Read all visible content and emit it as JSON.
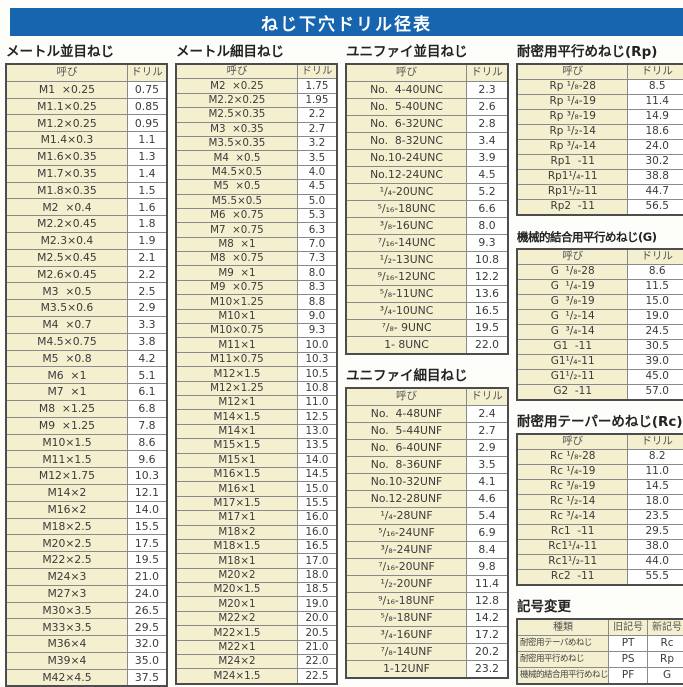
{
  "title": "ねじ下穴ドリル径表",
  "col_headers": {
    "name": "呼び",
    "drill": "ドリル"
  },
  "sections": {
    "metric_coarse": {
      "title": "メートル並目ねじ",
      "rows": [
        [
          "M1  ×0.25",
          "0.75"
        ],
        [
          "M1.1×0.25",
          "0.85"
        ],
        [
          "M1.2×0.25",
          "0.95"
        ],
        [
          "M1.4×0.3",
          "1.1"
        ],
        [
          "M1.6×0.35",
          "1.3"
        ],
        [
          "M1.7×0.35",
          "1.4"
        ],
        [
          "M1.8×0.35",
          "1.5"
        ],
        [
          "M2  ×0.4",
          "1.6"
        ],
        [
          "M2.2×0.45",
          "1.8"
        ],
        [
          "M2.3×0.4",
          "1.9"
        ],
        [
          "M2.5×0.45",
          "2.1"
        ],
        [
          "M2.6×0.45",
          "2.2"
        ],
        [
          "M3  ×0.5",
          "2.5"
        ],
        [
          "M3.5×0.6",
          "2.9"
        ],
        [
          "M4  ×0.7",
          "3.3"
        ],
        [
          "M4.5×0.75",
          "3.8"
        ],
        [
          "M5  ×0.8",
          "4.2"
        ],
        [
          "M6  ×1",
          "5.1"
        ],
        [
          "M7  ×1",
          "6.1"
        ],
        [
          "M8  ×1.25",
          "6.8"
        ],
        [
          "M9  ×1.25",
          "7.8"
        ],
        [
          "M10×1.5",
          "8.6"
        ],
        [
          "M11×1.5",
          "9.6"
        ],
        [
          "M12×1.75",
          "10.3"
        ],
        [
          "M14×2",
          "12.1"
        ],
        [
          "M16×2",
          "14.0"
        ],
        [
          "M18×2.5",
          "15.5"
        ],
        [
          "M20×2.5",
          "17.5"
        ],
        [
          "M22×2.5",
          "19.5"
        ],
        [
          "M24×3",
          "21.0"
        ],
        [
          "M27×3",
          "24.0"
        ],
        [
          "M30×3.5",
          "26.5"
        ],
        [
          "M33×3.5",
          "29.5"
        ],
        [
          "M36×4",
          "32.0"
        ],
        [
          "M39×4",
          "35.0"
        ],
        [
          "M42×4.5",
          "37.5"
        ]
      ]
    },
    "metric_fine": {
      "title": "メートル細目ねじ",
      "rows": [
        [
          "M2  ×0.25",
          "1.75"
        ],
        [
          "M2.2×0.25",
          "1.95"
        ],
        [
          "M2.5×0.35",
          "2.2"
        ],
        [
          "M3  ×0.35",
          "2.7"
        ],
        [
          "M3.5×0.35",
          "3.2"
        ],
        [
          "M4  ×0.5",
          "3.5"
        ],
        [
          "M4.5×0.5",
          "4.0"
        ],
        [
          "M5  ×0.5",
          "4.5"
        ],
        [
          "M5.5×0.5",
          "5.0"
        ],
        [
          "M6  ×0.75",
          "5.3"
        ],
        [
          "M7  ×0.75",
          "6.3"
        ],
        [
          "M8  ×1",
          "7.0"
        ],
        [
          "M8  ×0.75",
          "7.3"
        ],
        [
          "M9  ×1",
          "8.0"
        ],
        [
          "M9  ×0.75",
          "8.3"
        ],
        [
          "M10×1.25",
          "8.8"
        ],
        [
          "M10×1",
          "9.0"
        ],
        [
          "M10×0.75",
          "9.3"
        ],
        [
          "M11×1",
          "10.0"
        ],
        [
          "M11×0.75",
          "10.3"
        ],
        [
          "M12×1.5",
          "10.5"
        ],
        [
          "M12×1.25",
          "10.8"
        ],
        [
          "M12×1",
          "11.0"
        ],
        [
          "M14×1.5",
          "12.5"
        ],
        [
          "M14×1",
          "13.0"
        ],
        [
          "M15×1.5",
          "13.5"
        ],
        [
          "M15×1",
          "14.0"
        ],
        [
          "M16×1.5",
          "14.5"
        ],
        [
          "M16×1",
          "15.0"
        ],
        [
          "M17×1.5",
          "15.5"
        ],
        [
          "M17×1",
          "16.0"
        ],
        [
          "M18×2",
          "16.0"
        ],
        [
          "M18×1.5",
          "16.5"
        ],
        [
          "M18×1",
          "17.0"
        ],
        [
          "M20×2",
          "18.0"
        ],
        [
          "M20×1.5",
          "18.5"
        ],
        [
          "M20×1",
          "19.0"
        ],
        [
          "M22×2",
          "20.0"
        ],
        [
          "M22×1.5",
          "20.5"
        ],
        [
          "M22×1",
          "21.0"
        ],
        [
          "M24×2",
          "22.0"
        ],
        [
          "M24×1.5",
          "22.5"
        ]
      ]
    },
    "unified_coarse": {
      "title": "ユニファイ並目ねじ",
      "rows": [
        [
          "No.  4-40UNC",
          "2.3"
        ],
        [
          "No.  5-40UNC",
          "2.6"
        ],
        [
          "No.  6-32UNC",
          "2.8"
        ],
        [
          "No.  8-32UNC",
          "3.4"
        ],
        [
          "No.10-24UNC",
          "3.9"
        ],
        [
          "No.12-24UNC",
          "4.5"
        ],
        [
          "¹/₄-20UNC",
          "5.2"
        ],
        [
          "⁵/₁₆-18UNC",
          "6.6"
        ],
        [
          "³/₈-16UNC",
          "8.0"
        ],
        [
          "⁷/₁₆-14UNC",
          "9.3"
        ],
        [
          "¹/₂-13UNC",
          "10.8"
        ],
        [
          "⁹/₁₆-12UNC",
          "12.2"
        ],
        [
          "⁵/₈-11UNC",
          "13.6"
        ],
        [
          "³/₄-10UNC",
          "16.5"
        ],
        [
          "⁷/₈- 9UNC",
          "19.5"
        ],
        [
          "1- 8UNC",
          "22.0"
        ]
      ]
    },
    "unified_fine": {
      "title": "ユニファイ細目ねじ",
      "rows": [
        [
          "No.  4-48UNF",
          "2.4"
        ],
        [
          "No.  5-44UNF",
          "2.7"
        ],
        [
          "No.  6-40UNF",
          "2.9"
        ],
        [
          "No.  8-36UNF",
          "3.5"
        ],
        [
          "No.10-32UNF",
          "4.1"
        ],
        [
          "No.12-28UNF",
          "4.6"
        ],
        [
          "¹/₄-28UNF",
          "5.4"
        ],
        [
          "⁵/₁₆-24UNF",
          "6.9"
        ],
        [
          "³/₈-24UNF",
          "8.4"
        ],
        [
          "⁷/₁₆-20UNF",
          "9.8"
        ],
        [
          "¹/₂-20UNF",
          "11.4"
        ],
        [
          "⁹/₁₆-18UNF",
          "12.8"
        ],
        [
          "⁵/₈-18UNF",
          "14.2"
        ],
        [
          "³/₄-16UNF",
          "17.2"
        ],
        [
          "⁷/₈-14UNF",
          "20.2"
        ],
        [
          "1-12UNF",
          "23.2"
        ]
      ]
    },
    "rp": {
      "title": "耐密用平行めねじ(Rp)",
      "rows": [
        [
          "Rp ¹/₈-28",
          "8.5"
        ],
        [
          "Rp ¹/₄-19",
          "11.4"
        ],
        [
          "Rp ³/₈-19",
          "14.9"
        ],
        [
          "Rp ¹/₂-14",
          "18.6"
        ],
        [
          "Rp ³/₄-14",
          "24.0"
        ],
        [
          "Rp1  -11",
          "30.2"
        ],
        [
          "Rp1¹/₄-11",
          "38.8"
        ],
        [
          "Rp1¹/₂-11",
          "44.7"
        ],
        [
          "Rp2  -11",
          "56.5"
        ]
      ]
    },
    "g": {
      "title": "機械的結合用平行めねじ(G)",
      "rows": [
        [
          "G  ¹/₈-28",
          "8.6"
        ],
        [
          "G  ¹/₄-19",
          "11.5"
        ],
        [
          "G  ³/₈-19",
          "15.0"
        ],
        [
          "G  ¹/₂-14",
          "19.0"
        ],
        [
          "G  ³/₄-14",
          "24.5"
        ],
        [
          "G1  -11",
          "30.5"
        ],
        [
          "G1¹/₄-11",
          "39.0"
        ],
        [
          "G1¹/₂-11",
          "45.0"
        ],
        [
          "G2  -11",
          "57.0"
        ]
      ]
    },
    "rc": {
      "title": "耐密用テーパーめねじ(Rc)",
      "rows": [
        [
          "Rc ¹/₈-28",
          "8.2"
        ],
        [
          "Rc ¹/₄-19",
          "11.0"
        ],
        [
          "Rc ³/₈-19",
          "14.5"
        ],
        [
          "Rc ¹/₂-14",
          "18.0"
        ],
        [
          "Rc ³/₄-14",
          "23.5"
        ],
        [
          "Rc1  -11",
          "29.5"
        ],
        [
          "Rc1¹/₄-11",
          "38.0"
        ],
        [
          "Rc1¹/₂-11",
          "44.0"
        ],
        [
          "Rc2  -11",
          "55.5"
        ]
      ]
    },
    "symbol_change": {
      "title": "記号変更",
      "headers": [
        "種類",
        "旧記号",
        "新記号"
      ],
      "rows": [
        [
          "耐密用テーパめねじ",
          "PT",
          "Rc"
        ],
        [
          "耐密用平行めねじ",
          "PS",
          "Rp"
        ],
        [
          "機械的結合用平行めねじ",
          "PF",
          "G"
        ]
      ]
    }
  },
  "colors": {
    "accent_blue": "#1765af",
    "cell_cream": "#f3efcf",
    "border_dark": "#4d4d4d",
    "border_inner": "#8a8a8a"
  }
}
